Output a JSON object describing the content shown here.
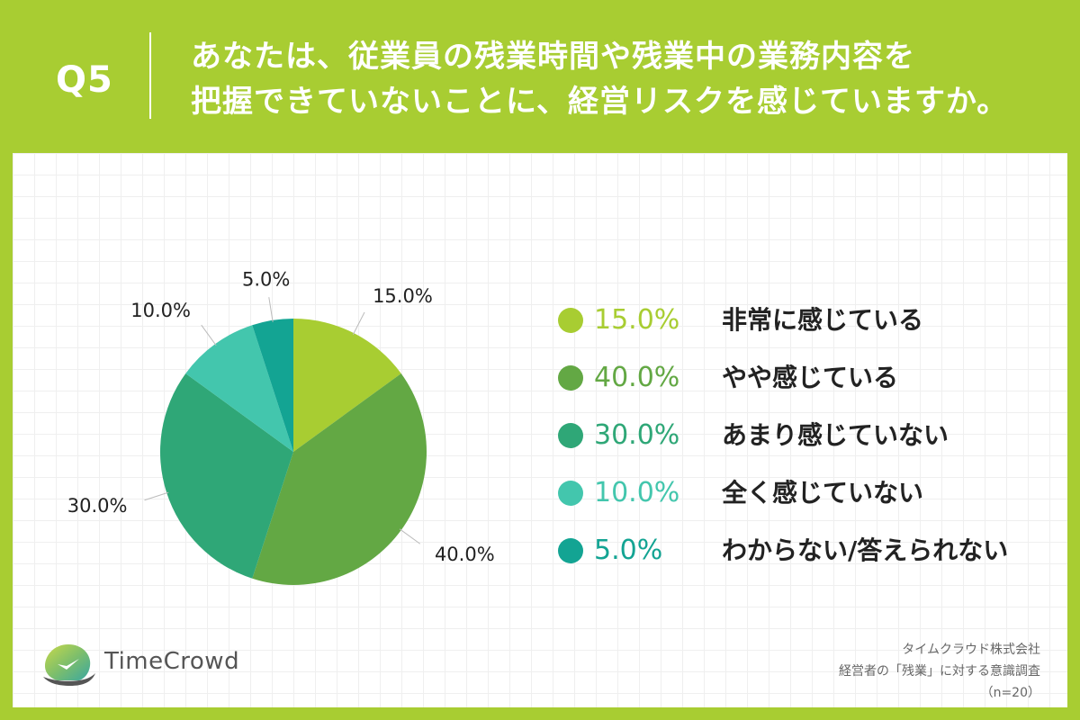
{
  "header": {
    "question_no": "Q5",
    "title_line1": "あなたは、従業員の残業時間や残業中の業務内容を",
    "title_line2": "把握できていないことに、経営リスクを感じていますか。"
  },
  "chart_data": {
    "type": "pie",
    "slices": [
      {
        "label": "非常に感じている",
        "value": 15.0,
        "display": "15.0%",
        "color": "#a8cd32"
      },
      {
        "label": "やや感じている",
        "value": 40.0,
        "display": "40.0%",
        "color": "#63a844"
      },
      {
        "label": "あまり感じていない",
        "value": 30.0,
        "display": "30.0%",
        "color": "#2fa777"
      },
      {
        "label": "全く感じていない",
        "value": 10.0,
        "display": "10.0%",
        "color": "#43c6ad"
      },
      {
        "label": "わからない/答えられない",
        "value": 5.0,
        "display": "5.0%",
        "color": "#13a493"
      }
    ],
    "start": "12 o'clock",
    "direction": "clockwise"
  },
  "colors": {
    "background": "#a8cd32",
    "panel": "#ffffff"
  },
  "logo": {
    "name": "TimeCrowd",
    "icon": "timecrowd-bird-logo-icon"
  },
  "source": {
    "line1": "タイムクラウド株式会社",
    "line2": "経営者の「残業」に対する意識調査",
    "line3": "（n=20）"
  }
}
